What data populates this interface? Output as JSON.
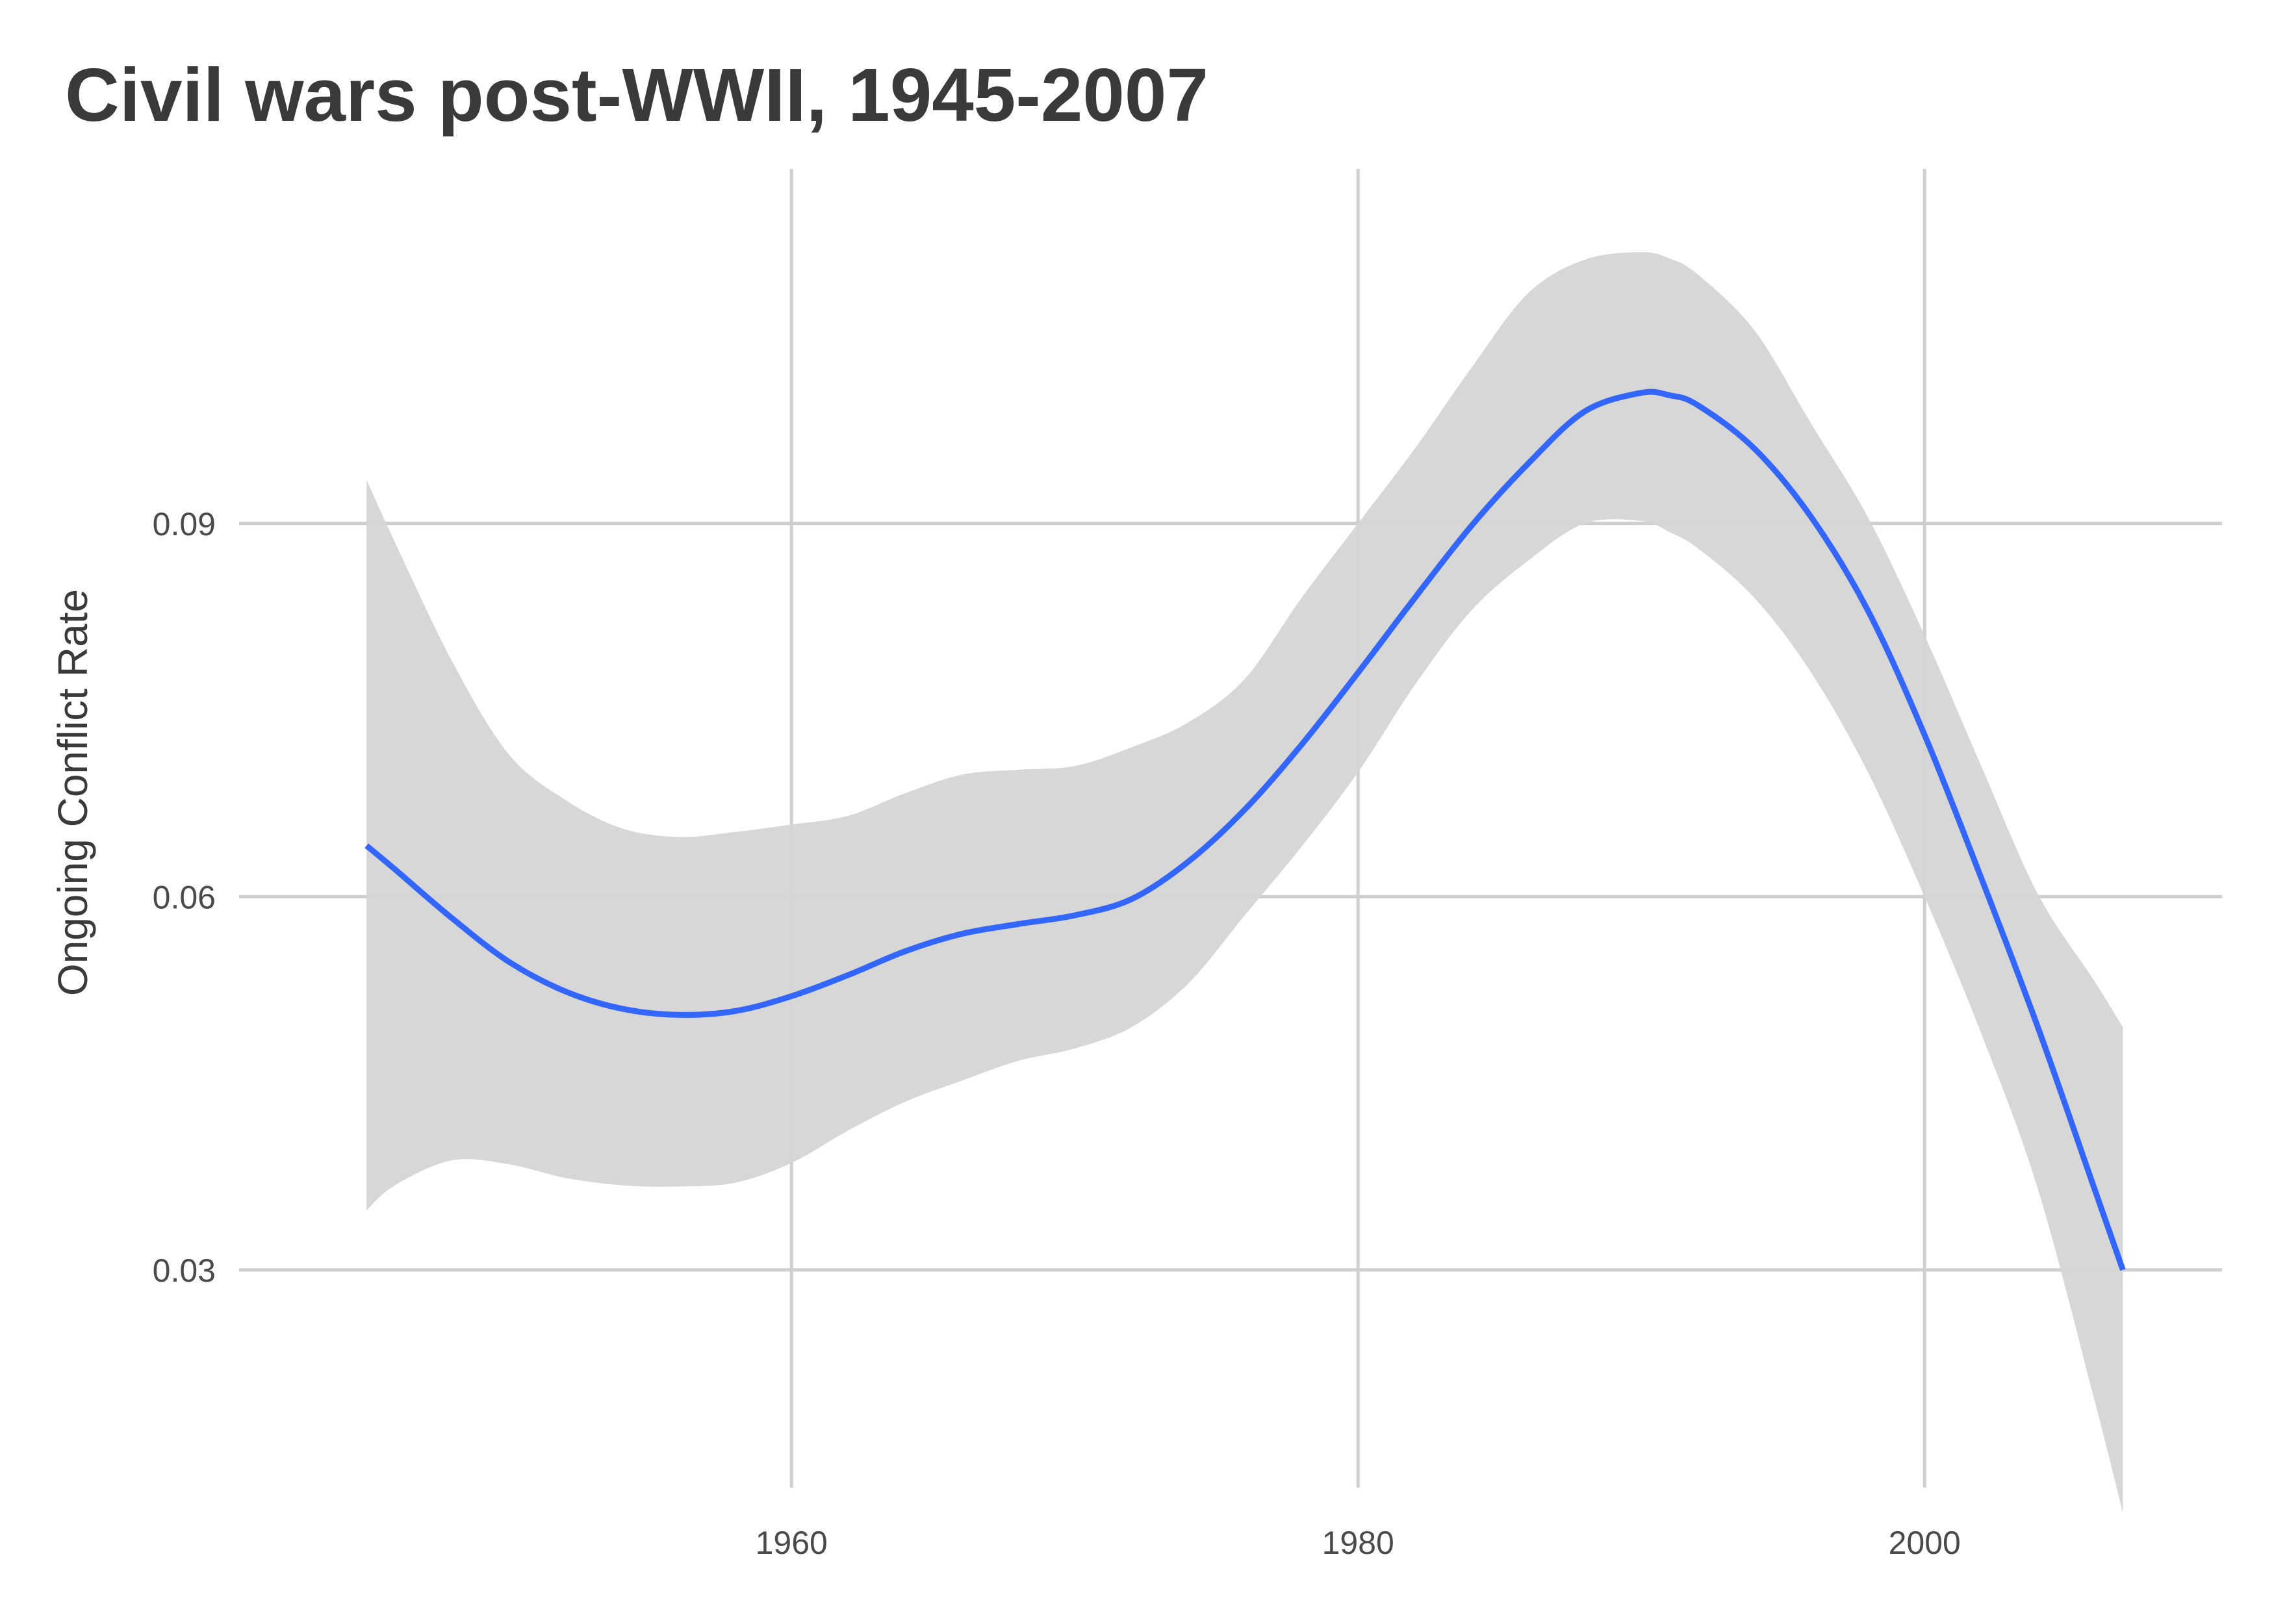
{
  "chart_data": {
    "type": "line",
    "title": "Civil wars post-WWII, 1945-2007",
    "xlabel": "",
    "ylabel": "Ongoing Conflict Rate",
    "xlim": [
      1940.5,
      2010.5
    ],
    "ylim": [
      0.0125,
      0.1185
    ],
    "xticks": [
      1960,
      1980,
      2000
    ],
    "yticks": [
      0.03,
      0.06,
      0.09
    ],
    "xtick_labels": [
      "1960",
      "1980",
      "2000"
    ],
    "ytick_labels": [
      "0.03",
      "0.06",
      "0.09"
    ],
    "grid": true,
    "legend": "none",
    "colors": {
      "line": "#3366ff",
      "band": "#d5d5d5",
      "grid": "#cfcfcf"
    },
    "series": [
      {
        "x": [
          1945,
          1946,
          1948,
          1950,
          1952,
          1954,
          1956,
          1958,
          1960,
          1962,
          1964,
          1966,
          1968,
          1970,
          1972,
          1974,
          1976,
          1978,
          1980,
          1982,
          1984,
          1986,
          1988,
          1990,
          1991,
          1992,
          1994,
          1996,
          1998,
          2000,
          2002,
          2004,
          2006,
          2007
        ],
        "y": [
          0.0641,
          0.0622,
          0.0583,
          0.0548,
          0.0524,
          0.051,
          0.0505,
          0.0508,
          0.052,
          0.0537,
          0.0556,
          0.057,
          0.0578,
          0.0585,
          0.0598,
          0.0628,
          0.067,
          0.0722,
          0.078,
          0.084,
          0.0898,
          0.0948,
          0.099,
          0.1005,
          0.1003,
          0.0995,
          0.096,
          0.0905,
          0.083,
          0.073,
          0.0615,
          0.0495,
          0.0365,
          0.03
        ],
        "lower": [
          0.0348,
          0.0368,
          0.0388,
          0.0385,
          0.0374,
          0.0368,
          0.0367,
          0.037,
          0.0386,
          0.0412,
          0.0435,
          0.0452,
          0.0468,
          0.0478,
          0.0495,
          0.053,
          0.0585,
          0.064,
          0.07,
          0.077,
          0.083,
          0.087,
          0.09,
          0.0902,
          0.0893,
          0.088,
          0.084,
          0.078,
          0.07,
          0.06,
          0.049,
          0.0365,
          0.0195,
          0.0105
        ],
        "upper": [
          0.0935,
          0.0885,
          0.079,
          0.0715,
          0.0678,
          0.0655,
          0.0648,
          0.0652,
          0.0658,
          0.0665,
          0.0683,
          0.0698,
          0.0702,
          0.0705,
          0.072,
          0.074,
          0.0775,
          0.084,
          0.09,
          0.096,
          0.1025,
          0.1085,
          0.1112,
          0.1118,
          0.1113,
          0.11,
          0.1055,
          0.098,
          0.0905,
          0.081,
          0.0705,
          0.0602,
          0.0532,
          0.0495
        ]
      }
    ]
  }
}
